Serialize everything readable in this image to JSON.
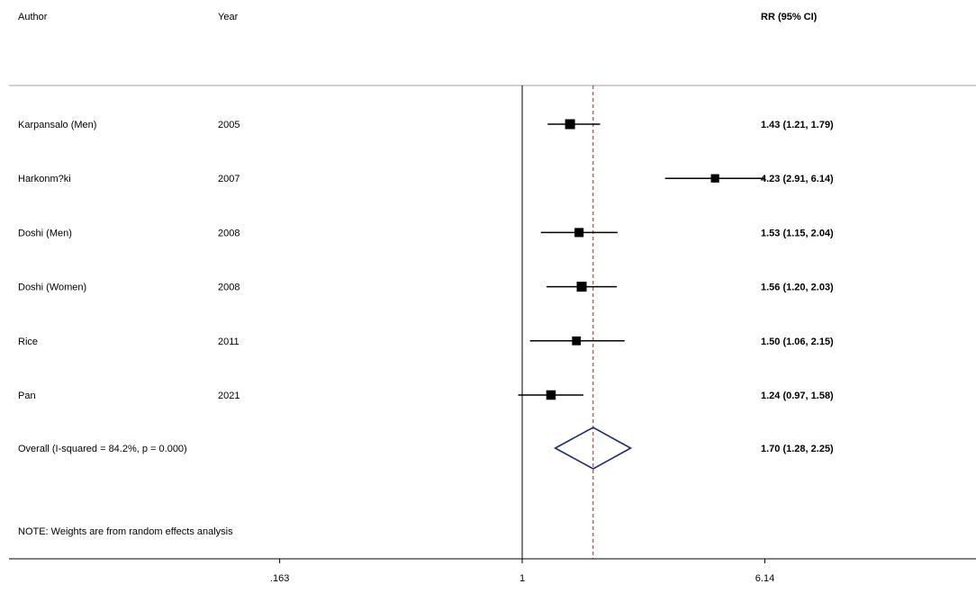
{
  "chart_data": {
    "type": "forest",
    "headers": {
      "author": "Author",
      "year": "Year",
      "estimate": "RR (95% CI)"
    },
    "x_scale": "log",
    "x_ticks": [
      {
        "value": 0.163,
        "label": ".163"
      },
      {
        "value": 1,
        "label": "1"
      },
      {
        "value": 6.14,
        "label": "6.14"
      }
    ],
    "null_line": 1,
    "studies": [
      {
        "author": "Karpansalo (Men)",
        "year": "2005",
        "rr": 1.43,
        "lower": 1.21,
        "upper": 1.79,
        "label": "1.43 (1.21, 1.79)",
        "weight": 1.0
      },
      {
        "author": "Harkonm?ki",
        "year": "2007",
        "rr": 4.23,
        "lower": 2.91,
        "upper": 6.14,
        "label": "4.23 (2.91, 6.14)",
        "weight": 0.65
      },
      {
        "author": "Doshi (Men)",
        "year": "2008",
        "rr": 1.53,
        "lower": 1.15,
        "upper": 2.04,
        "label": "1.53 (1.15, 2.04)",
        "weight": 0.82
      },
      {
        "author": "Doshi (Women)",
        "year": "2008",
        "rr": 1.56,
        "lower": 1.2,
        "upper": 2.03,
        "label": "1.56 (1.20, 2.03)",
        "weight": 1.0
      },
      {
        "author": "Rice",
        "year": "2011",
        "rr": 1.5,
        "lower": 1.06,
        "upper": 2.15,
        "label": "1.50 (1.06, 2.15)",
        "weight": 0.75
      },
      {
        "author": "Pan",
        "year": "2021",
        "rr": 1.24,
        "lower": 0.97,
        "upper": 1.58,
        "label": "1.24 (0.97, 1.58)",
        "weight": 0.9
      }
    ],
    "overall": {
      "label_text": "Overall  (I-squared = 84.2%, p = 0.000)",
      "rr": 1.7,
      "lower": 1.28,
      "upper": 2.25,
      "label": "1.70 (1.28, 2.25)"
    },
    "note": "NOTE: Weights are from random effects analysis",
    "colors": {
      "diamond": "#1f2a6b",
      "overall_line": "#8b2d2d",
      "axis": "#000000",
      "separator": "#a0a0a0"
    }
  }
}
